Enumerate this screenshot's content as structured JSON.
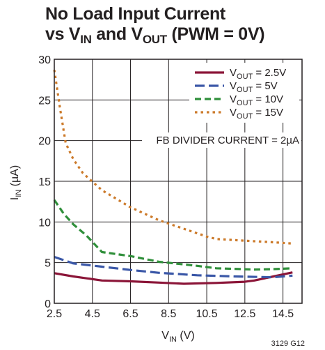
{
  "chart_data": {
    "type": "line",
    "title_line1": "No Load Input Current",
    "title_line2": {
      "pre": "vs V",
      "sub1": "IN",
      "mid": " and V",
      "sub2": "OUT",
      "post": " (PWM = 0V)"
    },
    "xlabel": {
      "main": "V",
      "sub": "IN",
      "unit": " (V)"
    },
    "ylabel": {
      "main": "I",
      "sub": "IN",
      "unit": " (µA)"
    },
    "xlim": [
      2.5,
      15.5
    ],
    "ylim": [
      0,
      30
    ],
    "xticks": [
      "2.5",
      "4.5",
      "6.5",
      "8.5",
      "10.5",
      "12.5",
      "14.5"
    ],
    "yticks": [
      "0",
      "5",
      "10",
      "15",
      "20",
      "25",
      "30"
    ],
    "grid": true,
    "legend_position": "top-right",
    "annotation": "FB DIVIDER CURRENT = 2µA",
    "figure_code": "3129 G12",
    "series": [
      {
        "name": {
          "main": "V",
          "sub": "OUT",
          "val": " = 2.5V"
        },
        "color": "#8b1538",
        "style": "solid",
        "x": [
          2.5,
          3.5,
          5,
          6.5,
          8,
          9.3,
          11,
          12.5,
          13,
          14,
          15
        ],
        "y": [
          3.7,
          3.3,
          2.8,
          2.7,
          2.55,
          2.4,
          2.5,
          2.65,
          2.8,
          3.3,
          3.8
        ]
      },
      {
        "name": {
          "main": "V",
          "sub": "OUT",
          "val": " = 5V"
        },
        "color": "#3a57a7",
        "style": "longdash",
        "x": [
          2.5,
          3.5,
          5,
          6.5,
          8,
          10,
          12,
          14,
          15
        ],
        "y": [
          5.7,
          4.9,
          4.5,
          4.1,
          3.75,
          3.45,
          3.3,
          3.2,
          3.4
        ]
      },
      {
        "name": {
          "main": "V",
          "sub": "OUT",
          "val": " = 10V"
        },
        "color": "#2f8f3a",
        "style": "dash",
        "x": [
          2.5,
          3,
          3.5,
          4.2,
          5,
          6.5,
          8,
          10,
          11,
          13,
          14,
          15
        ],
        "y": [
          12.7,
          11.0,
          9.7,
          8.3,
          6.3,
          5.8,
          5.1,
          4.6,
          4.3,
          4.15,
          4.2,
          4.3
        ]
      },
      {
        "name": {
          "main": "V",
          "sub": "OUT",
          "val": " = 15V"
        },
        "color": "#cc7a2a",
        "style": "dot",
        "x": [
          2.5,
          2.8,
          3.1,
          3.5,
          4,
          5,
          6.5,
          8,
          9.5,
          10.5,
          11,
          12.5,
          14,
          15
        ],
        "y": [
          28.7,
          24.0,
          19.7,
          17.7,
          16.0,
          13.9,
          11.8,
          10.2,
          9.0,
          8.2,
          7.9,
          7.7,
          7.5,
          7.35
        ]
      }
    ]
  }
}
